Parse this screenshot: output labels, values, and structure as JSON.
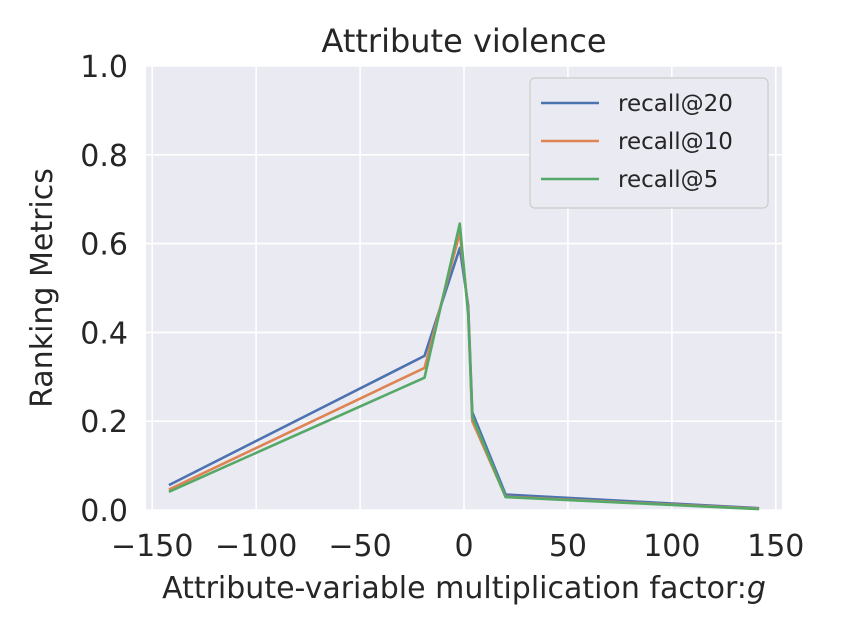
{
  "chart_data": {
    "type": "line",
    "title": "Attribute violence",
    "xlabel": "Attribute-variable multiplication factor:",
    "xlabel_var": "g",
    "ylabel": "Ranking Metrics",
    "xlim": [
      -153,
      153
    ],
    "ylim": [
      0.0,
      1.0
    ],
    "xticks": [
      -150,
      -100,
      -50,
      0,
      50,
      100,
      150
    ],
    "xtick_labels": [
      "−150",
      "−100",
      "−50",
      "0",
      "50",
      "100",
      "150"
    ],
    "yticks": [
      0.0,
      0.2,
      0.4,
      0.6,
      0.8,
      1.0
    ],
    "ytick_labels": [
      "0.0",
      "0.2",
      "0.4",
      "0.6",
      "0.8",
      "1.0"
    ],
    "grid": true,
    "legend_position": "top-right",
    "series": [
      {
        "name": "recall@20",
        "color": "#4c72b0",
        "x": [
          -142,
          -19,
          -2,
          2,
          4,
          20,
          142
        ],
        "y": [
          0.056,
          0.347,
          0.59,
          0.46,
          0.22,
          0.035,
          0.004
        ]
      },
      {
        "name": "recall@10",
        "color": "#dd8452",
        "x": [
          -142,
          -19,
          -2,
          2,
          4,
          20,
          142
        ],
        "y": [
          0.046,
          0.32,
          0.625,
          0.45,
          0.2,
          0.03,
          0.003
        ]
      },
      {
        "name": "recall@5",
        "color": "#55a868",
        "x": [
          -142,
          -19,
          -2,
          2,
          4,
          20,
          142
        ],
        "y": [
          0.041,
          0.298,
          0.645,
          0.44,
          0.21,
          0.029,
          0.002
        ]
      }
    ]
  }
}
